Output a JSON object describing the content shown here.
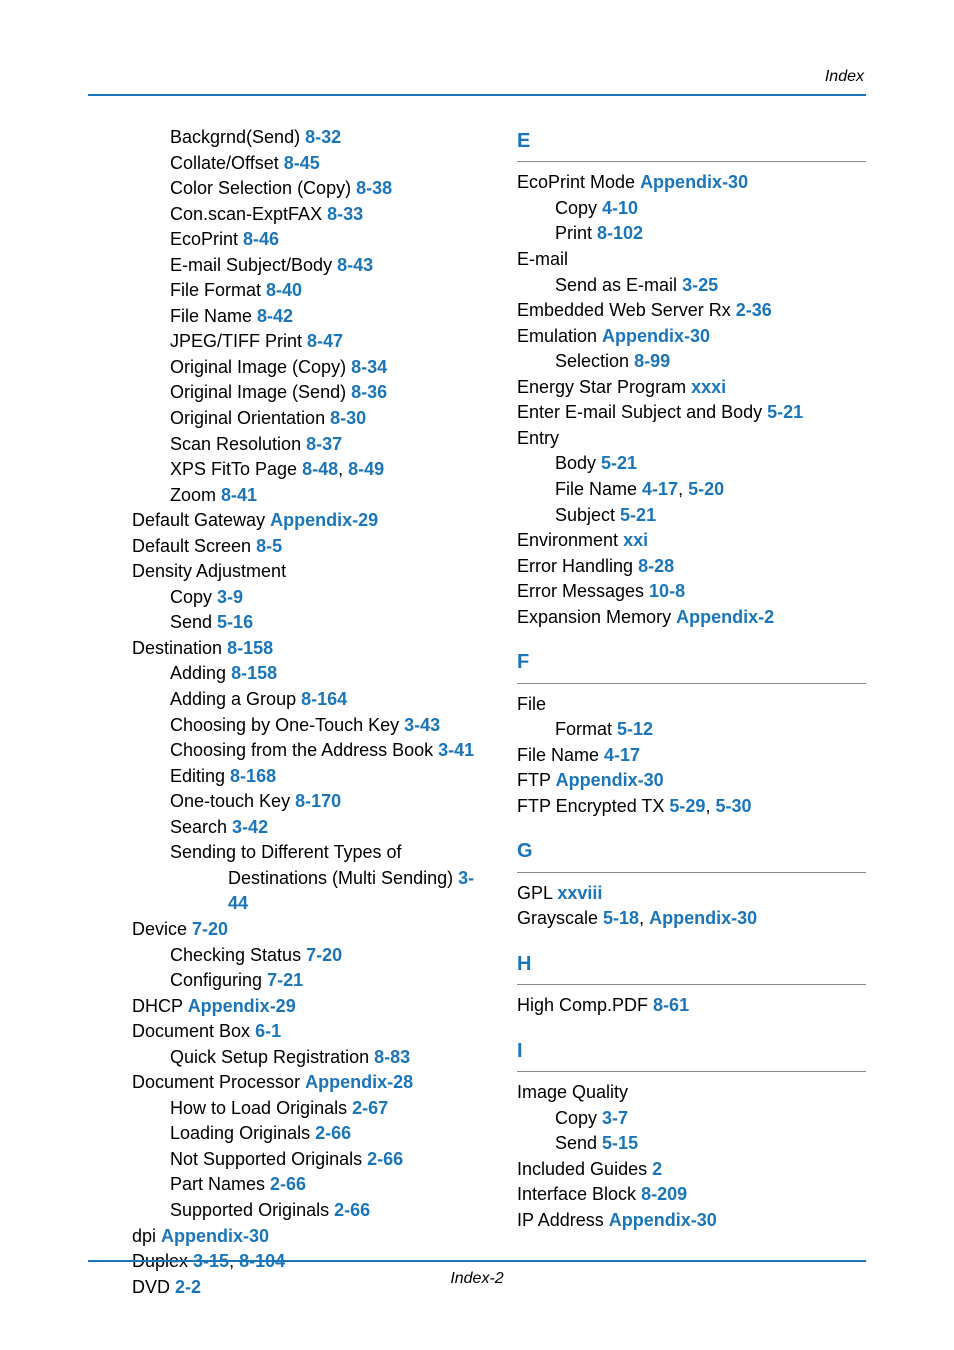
{
  "header": "Index",
  "footer": "Index-2",
  "left": {
    "lines": [
      {
        "cls": "sub",
        "parts": [
          {
            "t": "Backgrnd(Send) "
          },
          {
            "t": "8-32",
            "ref": true
          }
        ]
      },
      {
        "cls": "sub",
        "parts": [
          {
            "t": "Collate/Offset "
          },
          {
            "t": "8-45",
            "ref": true
          }
        ]
      },
      {
        "cls": "sub",
        "parts": [
          {
            "t": "Color Selection (Copy) "
          },
          {
            "t": "8-38",
            "ref": true
          }
        ]
      },
      {
        "cls": "sub",
        "parts": [
          {
            "t": "Con.scan-ExptFAX "
          },
          {
            "t": "8-33",
            "ref": true
          }
        ]
      },
      {
        "cls": "sub",
        "parts": [
          {
            "t": "EcoPrint "
          },
          {
            "t": "8-46",
            "ref": true
          }
        ]
      },
      {
        "cls": "sub",
        "parts": [
          {
            "t": "E-mail Subject/Body "
          },
          {
            "t": "8-43",
            "ref": true
          }
        ]
      },
      {
        "cls": "sub",
        "parts": [
          {
            "t": "File Format "
          },
          {
            "t": "8-40",
            "ref": true
          }
        ]
      },
      {
        "cls": "sub",
        "parts": [
          {
            "t": "File Name "
          },
          {
            "t": "8-42",
            "ref": true
          }
        ]
      },
      {
        "cls": "sub",
        "parts": [
          {
            "t": "JPEG/TIFF Print "
          },
          {
            "t": "8-47",
            "ref": true
          }
        ]
      },
      {
        "cls": "sub",
        "parts": [
          {
            "t": "Original Image (Copy) "
          },
          {
            "t": "8-34",
            "ref": true
          }
        ]
      },
      {
        "cls": "sub",
        "parts": [
          {
            "t": "Original Image (Send) "
          },
          {
            "t": "8-36",
            "ref": true
          }
        ]
      },
      {
        "cls": "sub",
        "parts": [
          {
            "t": "Original Orientation "
          },
          {
            "t": "8-30",
            "ref": true
          }
        ]
      },
      {
        "cls": "sub",
        "parts": [
          {
            "t": "Scan Resolution "
          },
          {
            "t": "8-37",
            "ref": true
          }
        ]
      },
      {
        "cls": "sub",
        "parts": [
          {
            "t": "XPS FitTo Page "
          },
          {
            "t": "8-48",
            "ref": true
          },
          {
            "t": ", "
          },
          {
            "t": "8-49",
            "ref": true
          }
        ]
      },
      {
        "cls": "sub",
        "parts": [
          {
            "t": "Zoom "
          },
          {
            "t": "8-41",
            "ref": true
          }
        ]
      },
      {
        "cls": "entry",
        "parts": [
          {
            "t": "Default Gateway "
          },
          {
            "t": "Appendix-29",
            "ref": true
          }
        ]
      },
      {
        "cls": "entry",
        "parts": [
          {
            "t": "Default Screen "
          },
          {
            "t": "8-5",
            "ref": true
          }
        ]
      },
      {
        "cls": "entry",
        "parts": [
          {
            "t": "Density Adjustment"
          }
        ]
      },
      {
        "cls": "sub",
        "parts": [
          {
            "t": "Copy "
          },
          {
            "t": "3-9",
            "ref": true
          }
        ]
      },
      {
        "cls": "sub",
        "parts": [
          {
            "t": "Send "
          },
          {
            "t": "5-16",
            "ref": true
          }
        ]
      },
      {
        "cls": "entry",
        "parts": [
          {
            "t": "Destination "
          },
          {
            "t": "8-158",
            "ref": true
          }
        ]
      },
      {
        "cls": "sub",
        "parts": [
          {
            "t": "Adding "
          },
          {
            "t": "8-158",
            "ref": true
          }
        ]
      },
      {
        "cls": "sub",
        "parts": [
          {
            "t": "Adding a Group "
          },
          {
            "t": "8-164",
            "ref": true
          }
        ]
      },
      {
        "cls": "sub",
        "parts": [
          {
            "t": "Choosing by One-Touch Key "
          },
          {
            "t": "3-43",
            "ref": true
          }
        ]
      },
      {
        "cls": "sub",
        "parts": [
          {
            "t": "Choosing from the Address Book "
          },
          {
            "t": "3-41",
            "ref": true
          }
        ]
      },
      {
        "cls": "sub",
        "parts": [
          {
            "t": "Editing "
          },
          {
            "t": "8-168",
            "ref": true
          }
        ]
      },
      {
        "cls": "sub",
        "parts": [
          {
            "t": "One-touch Key "
          },
          {
            "t": "8-170",
            "ref": true
          }
        ]
      },
      {
        "cls": "sub",
        "parts": [
          {
            "t": "Search "
          },
          {
            "t": "3-42",
            "ref": true
          }
        ]
      },
      {
        "cls": "sub",
        "parts": [
          {
            "t": "Sending to Different Types of "
          }
        ]
      },
      {
        "cls": "sub2",
        "parts": [
          {
            "t": "Destinations (Multi Sending) "
          },
          {
            "t": "3-",
            "ref": true
          }
        ]
      },
      {
        "cls": "sub2",
        "parts": [
          {
            "t": "44",
            "ref": true
          }
        ]
      },
      {
        "cls": "entry",
        "parts": [
          {
            "t": "Device "
          },
          {
            "t": "7-20",
            "ref": true
          }
        ]
      },
      {
        "cls": "sub",
        "parts": [
          {
            "t": "Checking Status "
          },
          {
            "t": "7-20",
            "ref": true
          }
        ]
      },
      {
        "cls": "sub",
        "parts": [
          {
            "t": "Configuring "
          },
          {
            "t": "7-21",
            "ref": true
          }
        ]
      },
      {
        "cls": "entry",
        "parts": [
          {
            "t": "DHCP "
          },
          {
            "t": "Appendix-29",
            "ref": true
          }
        ]
      },
      {
        "cls": "entry",
        "parts": [
          {
            "t": "Document Box "
          },
          {
            "t": "6-1",
            "ref": true
          }
        ]
      },
      {
        "cls": "sub",
        "parts": [
          {
            "t": "Quick Setup Registration "
          },
          {
            "t": "8-83",
            "ref": true
          }
        ]
      },
      {
        "cls": "entry",
        "parts": [
          {
            "t": "Document Processor "
          },
          {
            "t": "Appendix-28",
            "ref": true
          }
        ]
      },
      {
        "cls": "sub",
        "parts": [
          {
            "t": "How to Load Originals "
          },
          {
            "t": "2-67",
            "ref": true
          }
        ]
      },
      {
        "cls": "sub",
        "parts": [
          {
            "t": "Loading Originals "
          },
          {
            "t": "2-66",
            "ref": true
          }
        ]
      },
      {
        "cls": "sub",
        "parts": [
          {
            "t": "Not Supported Originals "
          },
          {
            "t": "2-66",
            "ref": true
          }
        ]
      },
      {
        "cls": "sub",
        "parts": [
          {
            "t": "Part Names "
          },
          {
            "t": "2-66",
            "ref": true
          }
        ]
      },
      {
        "cls": "sub",
        "parts": [
          {
            "t": "Supported Originals "
          },
          {
            "t": "2-66",
            "ref": true
          }
        ]
      },
      {
        "cls": "entry",
        "parts": [
          {
            "t": "dpi "
          },
          {
            "t": "Appendix-30",
            "ref": true
          }
        ]
      },
      {
        "cls": "entry",
        "parts": [
          {
            "t": "Duplex "
          },
          {
            "t": "3-15",
            "ref": true
          },
          {
            "t": ", "
          },
          {
            "t": "8-104",
            "ref": true
          }
        ]
      },
      {
        "cls": "entry",
        "parts": [
          {
            "t": "DVD "
          },
          {
            "t": "2-2",
            "ref": true
          }
        ]
      }
    ]
  },
  "right": {
    "sections": [
      {
        "letter": "E",
        "lines": [
          {
            "cls": "entry",
            "parts": [
              {
                "t": "EcoPrint Mode "
              },
              {
                "t": "Appendix-30",
                "ref": true
              }
            ]
          },
          {
            "cls": "sub",
            "parts": [
              {
                "t": "Copy "
              },
              {
                "t": "4-10",
                "ref": true
              }
            ]
          },
          {
            "cls": "sub",
            "parts": [
              {
                "t": "Print "
              },
              {
                "t": "8-102",
                "ref": true
              }
            ]
          },
          {
            "cls": "entry",
            "parts": [
              {
                "t": "E-mail"
              }
            ]
          },
          {
            "cls": "sub",
            "parts": [
              {
                "t": "Send as E-mail "
              },
              {
                "t": "3-25",
                "ref": true
              }
            ]
          },
          {
            "cls": "entry",
            "parts": [
              {
                "t": "Embedded Web Server Rx "
              },
              {
                "t": "2-36",
                "ref": true
              }
            ]
          },
          {
            "cls": "entry",
            "parts": [
              {
                "t": "Emulation "
              },
              {
                "t": "Appendix-30",
                "ref": true
              }
            ]
          },
          {
            "cls": "sub",
            "parts": [
              {
                "t": "Selection "
              },
              {
                "t": "8-99",
                "ref": true
              }
            ]
          },
          {
            "cls": "entry",
            "parts": [
              {
                "t": "Energy Star Program "
              },
              {
                "t": "xxxi",
                "ref": true
              }
            ]
          },
          {
            "cls": "entry",
            "parts": [
              {
                "t": "Enter E-mail Subject and Body "
              },
              {
                "t": "5-21",
                "ref": true
              }
            ]
          },
          {
            "cls": "entry",
            "parts": [
              {
                "t": "Entry"
              }
            ]
          },
          {
            "cls": "sub",
            "parts": [
              {
                "t": "Body "
              },
              {
                "t": "5-21",
                "ref": true
              }
            ]
          },
          {
            "cls": "sub",
            "parts": [
              {
                "t": "File Name "
              },
              {
                "t": "4-17",
                "ref": true
              },
              {
                "t": ", "
              },
              {
                "t": "5-20",
                "ref": true
              }
            ]
          },
          {
            "cls": "sub",
            "parts": [
              {
                "t": "Subject "
              },
              {
                "t": "5-21",
                "ref": true
              }
            ]
          },
          {
            "cls": "entry",
            "parts": [
              {
                "t": "Environment "
              },
              {
                "t": "xxi",
                "ref": true
              }
            ]
          },
          {
            "cls": "entry",
            "parts": [
              {
                "t": "Error Handling "
              },
              {
                "t": "8-28",
                "ref": true
              }
            ]
          },
          {
            "cls": "entry",
            "parts": [
              {
                "t": "Error Messages "
              },
              {
                "t": "10-8",
                "ref": true
              }
            ]
          },
          {
            "cls": "entry",
            "parts": [
              {
                "t": "Expansion Memory "
              },
              {
                "t": "Appendix-2",
                "ref": true
              }
            ]
          }
        ]
      },
      {
        "letter": "F",
        "lines": [
          {
            "cls": "entry",
            "parts": [
              {
                "t": "File"
              }
            ]
          },
          {
            "cls": "sub",
            "parts": [
              {
                "t": "Format "
              },
              {
                "t": "5-12",
                "ref": true
              }
            ]
          },
          {
            "cls": "entry",
            "parts": [
              {
                "t": "File Name "
              },
              {
                "t": "4-17",
                "ref": true
              }
            ]
          },
          {
            "cls": "entry",
            "parts": [
              {
                "t": "FTP "
              },
              {
                "t": "Appendix-30",
                "ref": true
              }
            ]
          },
          {
            "cls": "entry",
            "parts": [
              {
                "t": "FTP Encrypted TX "
              },
              {
                "t": "5-29",
                "ref": true
              },
              {
                "t": ", "
              },
              {
                "t": "5-30",
                "ref": true
              }
            ]
          }
        ]
      },
      {
        "letter": "G",
        "lines": [
          {
            "cls": "entry",
            "parts": [
              {
                "t": "GPL "
              },
              {
                "t": "xxviii",
                "ref": true
              }
            ]
          },
          {
            "cls": "entry",
            "parts": [
              {
                "t": "Grayscale "
              },
              {
                "t": "5-18",
                "ref": true
              },
              {
                "t": ", "
              },
              {
                "t": "Appendix-30",
                "ref": true
              }
            ]
          }
        ]
      },
      {
        "letter": "H",
        "lines": [
          {
            "cls": "entry",
            "parts": [
              {
                "t": "High Comp.PDF "
              },
              {
                "t": "8-61",
                "ref": true
              }
            ]
          }
        ]
      },
      {
        "letter": "I",
        "lines": [
          {
            "cls": "entry",
            "parts": [
              {
                "t": "Image Quality"
              }
            ]
          },
          {
            "cls": "sub",
            "parts": [
              {
                "t": "Copy "
              },
              {
                "t": "3-7",
                "ref": true
              }
            ]
          },
          {
            "cls": "sub",
            "parts": [
              {
                "t": "Send "
              },
              {
                "t": "5-15",
                "ref": true
              }
            ]
          },
          {
            "cls": "entry",
            "parts": [
              {
                "t": "Included Guides "
              },
              {
                "t": "2",
                "ref": true
              }
            ]
          },
          {
            "cls": "entry",
            "parts": [
              {
                "t": "Interface Block "
              },
              {
                "t": "8-209",
                "ref": true
              }
            ]
          },
          {
            "cls": "entry",
            "parts": [
              {
                "t": "IP Address "
              },
              {
                "t": "Appendix-30",
                "ref": true
              }
            ]
          }
        ]
      }
    ]
  }
}
